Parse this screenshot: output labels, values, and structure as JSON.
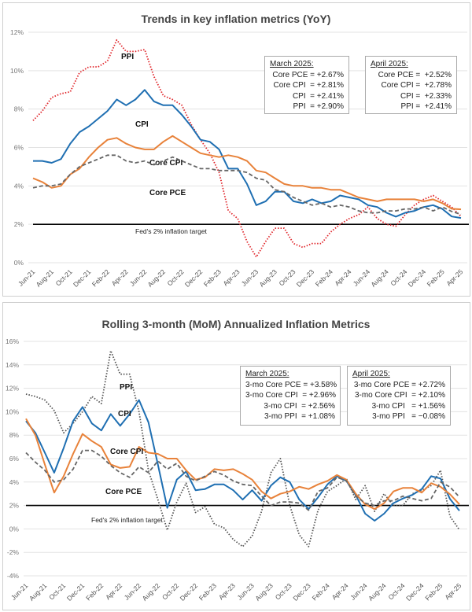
{
  "chart_data": [
    {
      "type": "line",
      "title": "Trends in key inflation metrics (YoY)",
      "ylim": [
        0,
        12
      ],
      "yticks": [
        "0%",
        "2%",
        "4%",
        "6%",
        "8%",
        "10%",
        "12%"
      ],
      "x": [
        "Jun-21",
        "Jul-21",
        "Aug-21",
        "Sep-21",
        "Oct-21",
        "Nov-21",
        "Dec-21",
        "Jan-22",
        "Feb-22",
        "Mar-22",
        "Apr-22",
        "May-22",
        "Jun-22",
        "Jul-22",
        "Aug-22",
        "Sep-22",
        "Oct-22",
        "Nov-22",
        "Dec-22",
        "Jan-23",
        "Feb-23",
        "Mar-23",
        "Apr-23",
        "May-23",
        "Jun-23",
        "Jul-23",
        "Aug-23",
        "Sep-23",
        "Oct-23",
        "Nov-23",
        "Dec-23",
        "Jan-24",
        "Feb-24",
        "Mar-24",
        "Apr-24",
        "May-24",
        "Jun-24",
        "Jul-24",
        "Aug-24",
        "Sep-24",
        "Oct-24",
        "Nov-24",
        "Dec-24",
        "Jan-25",
        "Feb-25",
        "Mar-25",
        "Apr-25"
      ],
      "target": {
        "value": 2,
        "label": "Fed's 2% inflation target"
      },
      "series": [
        {
          "name": "PPI",
          "color": "#e0262b",
          "style": "dotted",
          "values": [
            7.4,
            7.9,
            8.6,
            8.8,
            8.9,
            9.9,
            10.2,
            10.2,
            10.5,
            11.6,
            11.0,
            11.0,
            11.1,
            9.7,
            8.7,
            8.5,
            8.2,
            7.2,
            6.4,
            5.7,
            4.7,
            2.7,
            2.3,
            1.1,
            0.3,
            1.1,
            1.8,
            1.8,
            1.0,
            0.8,
            1.0,
            1.0,
            1.6,
            2.0,
            2.3,
            2.5,
            2.9,
            2.3,
            2.0,
            1.9,
            2.5,
            3.0,
            3.3,
            3.5,
            3.2,
            2.9,
            2.41
          ]
        },
        {
          "name": "CPI",
          "color": "#1f6fb2",
          "style": "solid",
          "values": [
            5.3,
            5.3,
            5.2,
            5.4,
            6.2,
            6.8,
            7.1,
            7.5,
            7.9,
            8.5,
            8.2,
            8.5,
            9.0,
            8.4,
            8.2,
            8.2,
            7.7,
            7.1,
            6.4,
            6.3,
            5.9,
            4.9,
            4.9,
            4.1,
            3.0,
            3.2,
            3.7,
            3.7,
            3.2,
            3.1,
            3.3,
            3.1,
            3.2,
            3.5,
            3.4,
            3.3,
            3.0,
            2.9,
            2.6,
            2.4,
            2.6,
            2.7,
            2.9,
            3.0,
            2.8,
            2.41,
            2.33
          ]
        },
        {
          "name": "Core CPI",
          "color": "#e8823a",
          "style": "solid",
          "values": [
            4.4,
            4.2,
            3.9,
            4.0,
            4.6,
            4.9,
            5.5,
            6.0,
            6.4,
            6.5,
            6.2,
            6.0,
            5.9,
            5.9,
            6.3,
            6.6,
            6.3,
            6.0,
            5.7,
            5.6,
            5.5,
            5.6,
            5.5,
            5.3,
            4.8,
            4.7,
            4.4,
            4.1,
            4.0,
            4.0,
            3.9,
            3.9,
            3.8,
            3.8,
            3.6,
            3.4,
            3.3,
            3.2,
            3.3,
            3.3,
            3.3,
            3.3,
            3.2,
            3.3,
            3.1,
            2.81,
            2.78
          ]
        },
        {
          "name": "Core PCE",
          "color": "#666666",
          "style": "dashed",
          "values": [
            3.9,
            4.0,
            4.0,
            4.1,
            4.6,
            5.0,
            5.2,
            5.4,
            5.6,
            5.6,
            5.3,
            5.2,
            5.3,
            5.1,
            5.3,
            5.5,
            5.3,
            5.1,
            4.9,
            4.9,
            4.8,
            4.8,
            4.8,
            4.7,
            4.4,
            4.3,
            3.8,
            3.7,
            3.4,
            3.2,
            3.0,
            3.1,
            2.9,
            3.0,
            2.9,
            2.7,
            2.6,
            2.6,
            2.7,
            2.7,
            2.8,
            2.8,
            2.9,
            2.7,
            2.9,
            2.67,
            2.52
          ]
        }
      ],
      "annotations": [
        {
          "title": "March 2025:",
          "lines": [
            "Core PCE = +2.67%",
            "Core CPI  = +2.81%",
            "CPI  = +2.41%",
            "PPI  = +2.90%"
          ]
        },
        {
          "title": "April 2025:",
          "lines": [
            "Core PCE =  +2.52%",
            "Core CPI =  +2.78%",
            "CPI =  +2.33%",
            "PPI =  +2.41%"
          ]
        }
      ]
    },
    {
      "type": "line",
      "title": "Rolling 3-month (MoM) Annualized Inflation Metrics",
      "ylim": [
        -4,
        16
      ],
      "yticks": [
        "-4%",
        "-2%",
        "0%",
        "2%",
        "4%",
        "6%",
        "8%",
        "10%",
        "12%",
        "14%",
        "16%"
      ],
      "x": [
        "Jun-21",
        "Jul-21",
        "Aug-21",
        "Sep-21",
        "Oct-21",
        "Nov-21",
        "Dec-21",
        "Jan-22",
        "Feb-22",
        "Mar-22",
        "Apr-22",
        "May-22",
        "Jun-22",
        "Jul-22",
        "Aug-22",
        "Sep-22",
        "Oct-22",
        "Nov-22",
        "Dec-22",
        "Jan-23",
        "Feb-23",
        "Mar-23",
        "Apr-23",
        "May-23",
        "Jun-23",
        "Jul-23",
        "Aug-23",
        "Sep-23",
        "Oct-23",
        "Nov-23",
        "Dec-23",
        "Jan-24",
        "Feb-24",
        "Mar-24",
        "Apr-24",
        "May-24",
        "Jun-24",
        "Jul-24",
        "Aug-24",
        "Sep-24",
        "Oct-24",
        "Nov-24",
        "Dec-24",
        "Jan-25",
        "Feb-25",
        "Mar-25",
        "Apr-25"
      ],
      "target": {
        "value": 2,
        "label": "Fed's 2% inflation target"
      },
      "series": [
        {
          "name": "PPI",
          "color": "#555555",
          "style": "dotted",
          "values": [
            11.5,
            11.3,
            11.0,
            10.1,
            8.2,
            9.0,
            10.0,
            11.3,
            10.7,
            15.2,
            13.2,
            13.2,
            10.0,
            5.0,
            2.5,
            -0.1,
            2.3,
            3.9,
            1.4,
            1.9,
            0.4,
            0.1,
            -0.9,
            -1.5,
            -0.6,
            1.5,
            4.8,
            6.0,
            2.0,
            -0.5,
            -1.5,
            1.6,
            3.2,
            3.7,
            4.3,
            2.5,
            3.7,
            1.5,
            3.0,
            2.0,
            2.0,
            3.0,
            3.3,
            3.7,
            5.0,
            1.08,
            -0.08
          ]
        },
        {
          "name": "CPI",
          "color": "#1f6fb2",
          "style": "solid",
          "values": [
            9.2,
            8.2,
            6.5,
            4.8,
            6.9,
            9.2,
            10.4,
            9.0,
            8.4,
            9.8,
            8.8,
            9.8,
            11.0,
            9.1,
            5.5,
            1.8,
            4.2,
            4.9,
            3.3,
            3.4,
            3.8,
            3.8,
            3.3,
            2.5,
            3.3,
            2.4,
            3.7,
            4.4,
            4.0,
            2.5,
            1.7,
            2.7,
            3.8,
            4.5,
            4.1,
            2.9,
            1.3,
            0.7,
            1.3,
            2.2,
            2.6,
            2.9,
            3.4,
            4.5,
            4.3,
            2.56,
            1.56
          ]
        },
        {
          "name": "Core CPI",
          "color": "#e8823a",
          "style": "solid",
          "values": [
            9.4,
            8.0,
            5.5,
            3.1,
            4.5,
            6.4,
            8.1,
            7.5,
            7.0,
            5.5,
            5.2,
            5.3,
            7.0,
            6.5,
            6.4,
            6.0,
            6.0,
            5.0,
            4.2,
            4.4,
            5.1,
            5.0,
            5.1,
            4.7,
            4.2,
            3.2,
            2.6,
            3.0,
            3.2,
            3.6,
            3.4,
            3.8,
            4.1,
            4.6,
            4.2,
            3.0,
            2.1,
            1.7,
            2.2,
            3.2,
            3.5,
            3.5,
            3.1,
            3.9,
            3.6,
            2.96,
            2.1
          ]
        },
        {
          "name": "Core PCE",
          "color": "#666666",
          "style": "dashed",
          "values": [
            6.5,
            5.7,
            5.0,
            4.0,
            4.2,
            5.1,
            6.7,
            6.7,
            6.2,
            5.4,
            4.8,
            4.4,
            5.3,
            4.8,
            5.8,
            5.1,
            5.6,
            4.5,
            4.1,
            4.5,
            4.9,
            4.6,
            4.1,
            3.8,
            3.7,
            2.8,
            2.0,
            2.3,
            2.3,
            2.2,
            1.6,
            3.2,
            3.5,
            4.4,
            4.1,
            2.8,
            2.2,
            2.0,
            2.4,
            2.4,
            2.8,
            2.6,
            2.4,
            2.6,
            4.0,
            3.58,
            2.72
          ]
        }
      ],
      "annotations": [
        {
          "title": "March 2025:",
          "lines": [
            "3-mo Core PCE = +3.58%",
            "3-mo Core CPI  = +2.96%",
            "3-mo CPI  = +2.56%",
            "3-mo PPI  = +1.08%"
          ]
        },
        {
          "title": "April 2025:",
          "lines": [
            "3-mo Core PCE = +2.72%",
            "3-mo Core CPI  = +2.10%",
            "3-mo CPI   = +1.56%",
            "3-mo PPI   = −0.08%"
          ]
        }
      ]
    }
  ]
}
